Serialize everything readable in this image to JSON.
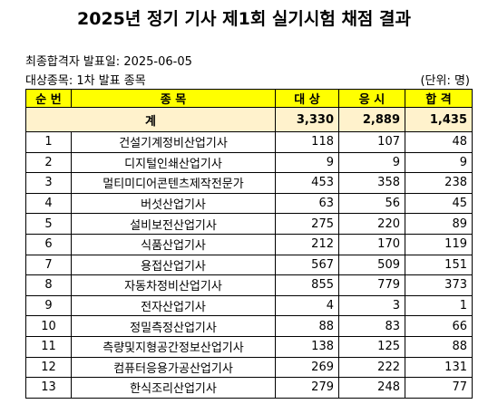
{
  "header": {
    "title": "2025년 정기 기사 제1회 실기시험 채점 결과"
  },
  "info": {
    "announce_date": "최종합격자 발표일: 2025-06-05",
    "target": "대상종목: 1차 발표 종목",
    "unit": "(단위: 명)"
  },
  "table": {
    "columns": [
      "순 번",
      "종 목",
      "대 상",
      "응 시",
      "합 격"
    ],
    "total": [
      "계",
      "3,330",
      "2,889",
      "1,435"
    ],
    "rows": [
      [
        "1",
        "건설기계정비산업기사",
        "118",
        "107",
        "48"
      ],
      [
        "2",
        "디지털인쇄산업기사",
        "9",
        "9",
        "9"
      ],
      [
        "3",
        "멀티미디어콘텐츠제작전문가",
        "453",
        "358",
        "238"
      ],
      [
        "4",
        "버섯산업기사",
        "63",
        "56",
        "45"
      ],
      [
        "5",
        "설비보전산업기사",
        "275",
        "220",
        "89"
      ],
      [
        "6",
        "식품산업기사",
        "212",
        "170",
        "119"
      ],
      [
        "7",
        "용접산업기사",
        "567",
        "509",
        "151"
      ],
      [
        "8",
        "자동차정비산업기사",
        "855",
        "779",
        "373"
      ],
      [
        "9",
        "전자산업기사",
        "4",
        "3",
        "1"
      ],
      [
        "10",
        "정밀측정산업기사",
        "88",
        "83",
        "66"
      ],
      [
        "11",
        "측량및지형공간정보산업기사",
        "138",
        "125",
        "88"
      ],
      [
        "12",
        "컴퓨터응용가공산업기사",
        "269",
        "222",
        "131"
      ],
      [
        "13",
        "한식조리산업기사",
        "279",
        "248",
        "77"
      ]
    ]
  }
}
